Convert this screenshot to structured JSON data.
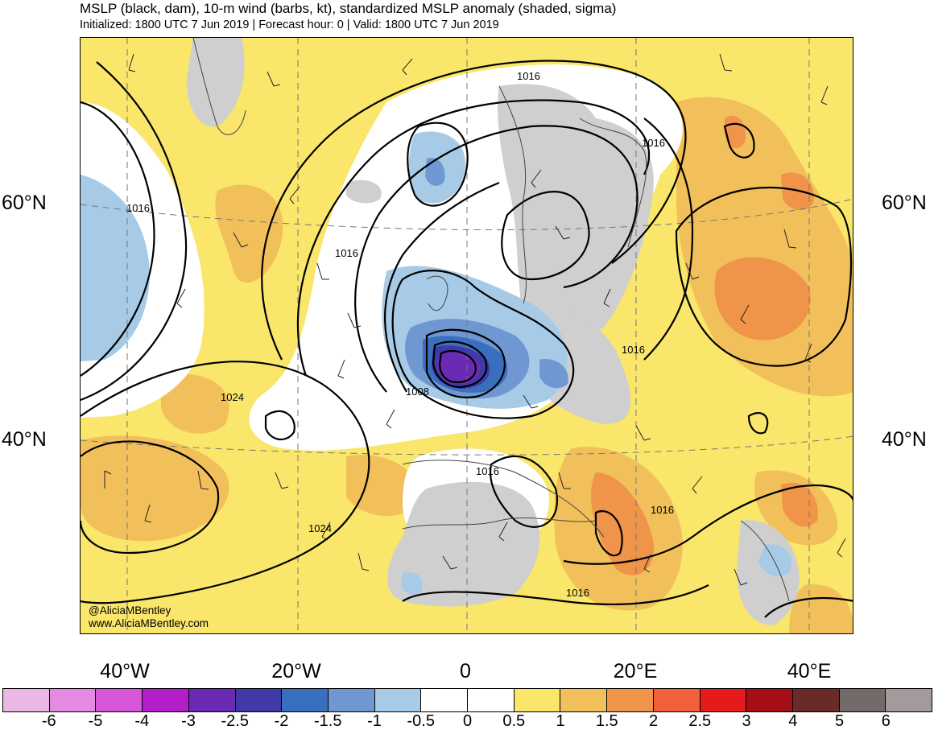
{
  "header": {
    "title": "MSLP (black, dam), 10-m wind (barbs, kt), standardized MSLP anomaly (shaded, sigma)",
    "subtitle": "Initialized: 1800 UTC 7 Jun 2019 | Forecast hour: 0 | Valid: 1800 UTC 7 Jun 2019"
  },
  "map": {
    "lat_labels": {
      "left_60": "60°N",
      "right_60": "60°N",
      "left_40": "40°N",
      "right_40": "40°N"
    },
    "lon_labels": [
      "40°W",
      "20°W",
      "0",
      "20°E",
      "40°E"
    ],
    "isobar_labels": [
      "1016",
      "1016",
      "1016",
      "1016",
      "1016",
      "1016",
      "1016",
      "1008",
      "1024",
      "1024",
      "1016"
    ],
    "colors": {
      "land_gray": "#cfcfcf",
      "neutral": "#ffffff",
      "pos_0_5_1": "#f9e66b",
      "pos_1_1_5": "#f2c05a",
      "pos_1_5_2": "#ef9448",
      "neg_0_5_1": "#a7cbe6",
      "neg_1_1_5": "#7aa8d8",
      "neg_1_5_2": "#4a77c5",
      "neg_2_2_5": "#3f3aa8",
      "neg_2_5_3": "#6a2ab3"
    }
  },
  "credits": {
    "handle": "@AliciaMBentley",
    "website": "www.AliciaMBentley.com"
  },
  "colorbar": {
    "colors": [
      "#ebb8e6",
      "#e48ae0",
      "#d856d9",
      "#b21fc9",
      "#6a2ab3",
      "#3f3aa8",
      "#3a6fc0",
      "#6f98d2",
      "#a7cbe6",
      "#ffffff",
      "#ffffff",
      "#f9e66b",
      "#f2c05a",
      "#ef9448",
      "#f0603a",
      "#e41a1c",
      "#a50f15",
      "#6b2a2a",
      "#736a6a",
      "#a39b9b"
    ],
    "ticks": [
      "-6",
      "-5",
      "-4",
      "-3",
      "-2.5",
      "-2",
      "-1.5",
      "-1",
      "-0.5",
      "0",
      "0.5",
      "1",
      "1.5",
      "2",
      "2.5",
      "3",
      "4",
      "5",
      "6"
    ]
  }
}
